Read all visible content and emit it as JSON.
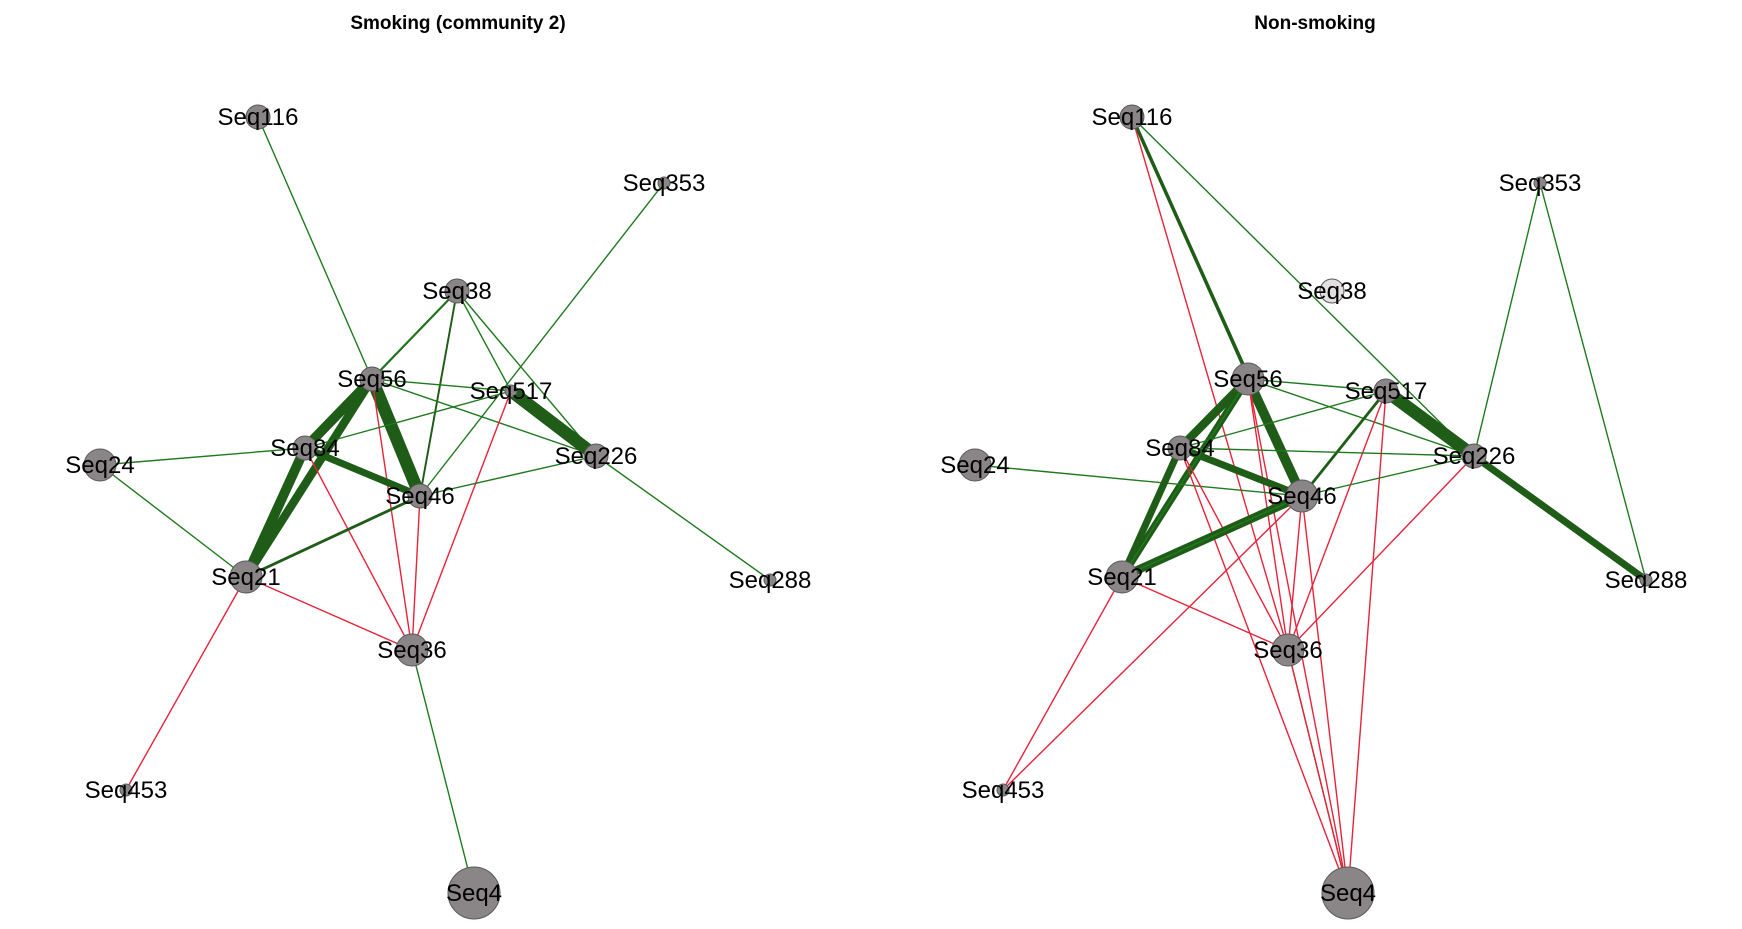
{
  "colors": {
    "positive_edge": "#1f7a1f",
    "positive_edge_strong": "#1e5c17",
    "negative_edge": "#e8233a",
    "node_fill": "#8a8587",
    "node_fill_light": "#e2e0e1",
    "node_stroke": "#5a5a5a"
  },
  "panels": [
    {
      "id": "smoking",
      "title": "Smoking (community 2)",
      "nodes": [
        {
          "id": "Seq116",
          "label": "Seq116",
          "size": "small"
        },
        {
          "id": "Seq353",
          "label": "Seq353",
          "size": "tiny"
        },
        {
          "id": "Seq38",
          "label": "Seq38",
          "size": "small"
        },
        {
          "id": "Seq56",
          "label": "Seq56",
          "size": "small"
        },
        {
          "id": "Seq517",
          "label": "Seq517",
          "size": "tiny"
        },
        {
          "id": "Seq24",
          "label": "Seq24",
          "size": "medium"
        },
        {
          "id": "Seq84",
          "label": "Seq84",
          "size": "small"
        },
        {
          "id": "Seq226",
          "label": "Seq226",
          "size": "small"
        },
        {
          "id": "Seq46",
          "label": "Seq46",
          "size": "small"
        },
        {
          "id": "Seq21",
          "label": "Seq21",
          "size": "medium"
        },
        {
          "id": "Seq288",
          "label": "Seq288",
          "size": "tiny"
        },
        {
          "id": "Seq36",
          "label": "Seq36",
          "size": "medium"
        },
        {
          "id": "Seq453",
          "label": "Seq453",
          "size": "tiny"
        },
        {
          "id": "Seq4",
          "label": "Seq4",
          "size": "large"
        }
      ],
      "edges": [
        {
          "from": "Seq116",
          "to": "Seq56",
          "sign": "positive",
          "weight": 1
        },
        {
          "from": "Seq353",
          "to": "Seq46",
          "sign": "positive",
          "weight": 1
        },
        {
          "from": "Seq38",
          "to": "Seq56",
          "sign": "positive",
          "weight": 1.5
        },
        {
          "from": "Seq38",
          "to": "Seq84",
          "sign": "positive",
          "weight": 1
        },
        {
          "from": "Seq38",
          "to": "Seq46",
          "sign": "positive",
          "weight": 1.4
        },
        {
          "from": "Seq38",
          "to": "Seq517",
          "sign": "positive",
          "weight": 1
        },
        {
          "from": "Seq38",
          "to": "Seq226",
          "sign": "positive",
          "weight": 1
        },
        {
          "from": "Seq56",
          "to": "Seq517",
          "sign": "positive",
          "weight": 1
        },
        {
          "from": "Seq56",
          "to": "Seq226",
          "sign": "positive",
          "weight": 1
        },
        {
          "from": "Seq56",
          "to": "Seq84",
          "sign": "positive",
          "weight": 7
        },
        {
          "from": "Seq56",
          "to": "Seq21",
          "sign": "positive",
          "weight": 6
        },
        {
          "from": "Seq56",
          "to": "Seq46",
          "sign": "positive",
          "weight": 9
        },
        {
          "from": "Seq56",
          "to": "Seq36",
          "sign": "negative",
          "weight": 1
        },
        {
          "from": "Seq517",
          "to": "Seq226",
          "sign": "positive",
          "weight": 9
        },
        {
          "from": "Seq517",
          "to": "Seq84",
          "sign": "positive",
          "weight": 1
        },
        {
          "from": "Seq517",
          "to": "Seq36",
          "sign": "negative",
          "weight": 1
        },
        {
          "from": "Seq24",
          "to": "Seq84",
          "sign": "positive",
          "weight": 1
        },
        {
          "from": "Seq24",
          "to": "Seq21",
          "sign": "positive",
          "weight": 1
        },
        {
          "from": "Seq84",
          "to": "Seq46",
          "sign": "positive",
          "weight": 5
        },
        {
          "from": "Seq84",
          "to": "Seq21",
          "sign": "positive",
          "weight": 7
        },
        {
          "from": "Seq84",
          "to": "Seq36",
          "sign": "negative",
          "weight": 1
        },
        {
          "from": "Seq226",
          "to": "Seq46",
          "sign": "positive",
          "weight": 1
        },
        {
          "from": "Seq226",
          "to": "Seq288",
          "sign": "positive",
          "weight": 1
        },
        {
          "from": "Seq46",
          "to": "Seq21",
          "sign": "positive",
          "weight": 2
        },
        {
          "from": "Seq46",
          "to": "Seq36",
          "sign": "negative",
          "weight": 1
        },
        {
          "from": "Seq21",
          "to": "Seq36",
          "sign": "negative",
          "weight": 1
        },
        {
          "from": "Seq21",
          "to": "Seq453",
          "sign": "negative",
          "weight": 1
        },
        {
          "from": "Seq36",
          "to": "Seq4",
          "sign": "positive",
          "weight": 1
        }
      ]
    },
    {
      "id": "non-smoking",
      "title": "Non-smoking",
      "nodes": [
        {
          "id": "Seq116",
          "label": "Seq116",
          "size": "small"
        },
        {
          "id": "Seq353",
          "label": "Seq353",
          "size": "tiny"
        },
        {
          "id": "Seq38",
          "label": "Seq38",
          "size": "small",
          "light": true
        },
        {
          "id": "Seq56",
          "label": "Seq56",
          "size": "medium"
        },
        {
          "id": "Seq517",
          "label": "Seq517",
          "size": "small"
        },
        {
          "id": "Seq24",
          "label": "Seq24",
          "size": "medium"
        },
        {
          "id": "Seq84",
          "label": "Seq84",
          "size": "small"
        },
        {
          "id": "Seq226",
          "label": "Seq226",
          "size": "small"
        },
        {
          "id": "Seq46",
          "label": "Seq46",
          "size": "medium"
        },
        {
          "id": "Seq21",
          "label": "Seq21",
          "size": "medium"
        },
        {
          "id": "Seq288",
          "label": "Seq288",
          "size": "tiny"
        },
        {
          "id": "Seq36",
          "label": "Seq36",
          "size": "medium"
        },
        {
          "id": "Seq453",
          "label": "Seq453",
          "size": "tiny"
        },
        {
          "id": "Seq4",
          "label": "Seq4",
          "size": "large"
        }
      ],
      "edges": [
        {
          "from": "Seq116",
          "to": "Seq56",
          "sign": "positive",
          "weight": 1
        },
        {
          "from": "Seq116",
          "to": "Seq46",
          "sign": "positive",
          "weight": 2.5
        },
        {
          "from": "Seq116",
          "to": "Seq226",
          "sign": "positive",
          "weight": 1
        },
        {
          "from": "Seq116",
          "to": "Seq36",
          "sign": "negative",
          "weight": 1
        },
        {
          "from": "Seq353",
          "to": "Seq226",
          "sign": "positive",
          "weight": 1
        },
        {
          "from": "Seq353",
          "to": "Seq288",
          "sign": "positive",
          "weight": 1
        },
        {
          "from": "Seq56",
          "to": "Seq84",
          "sign": "positive",
          "weight": 6
        },
        {
          "from": "Seq56",
          "to": "Seq21",
          "sign": "positive",
          "weight": 5
        },
        {
          "from": "Seq56",
          "to": "Seq46",
          "sign": "positive",
          "weight": 7
        },
        {
          "from": "Seq56",
          "to": "Seq517",
          "sign": "positive",
          "weight": 1
        },
        {
          "from": "Seq56",
          "to": "Seq226",
          "sign": "positive",
          "weight": 1
        },
        {
          "from": "Seq56",
          "to": "Seq36",
          "sign": "negative",
          "weight": 1
        },
        {
          "from": "Seq56",
          "to": "Seq4",
          "sign": "negative",
          "weight": 1
        },
        {
          "from": "Seq517",
          "to": "Seq226",
          "sign": "positive",
          "weight": 9
        },
        {
          "from": "Seq517",
          "to": "Seq84",
          "sign": "positive",
          "weight": 1
        },
        {
          "from": "Seq517",
          "to": "Seq46",
          "sign": "positive",
          "weight": 2
        },
        {
          "from": "Seq517",
          "to": "Seq36",
          "sign": "negative",
          "weight": 1
        },
        {
          "from": "Seq517",
          "to": "Seq4",
          "sign": "negative",
          "weight": 1
        },
        {
          "from": "Seq226",
          "to": "Seq288",
          "sign": "positive",
          "weight": 5
        },
        {
          "from": "Seq226",
          "to": "Seq46",
          "sign": "positive",
          "weight": 1
        },
        {
          "from": "Seq226",
          "to": "Seq84",
          "sign": "positive",
          "weight": 1
        },
        {
          "from": "Seq226",
          "to": "Seq36",
          "sign": "negative",
          "weight": 1
        },
        {
          "from": "Seq24",
          "to": "Seq46",
          "sign": "positive",
          "weight": 1
        },
        {
          "from": "Seq84",
          "to": "Seq46",
          "sign": "positive",
          "weight": 5
        },
        {
          "from": "Seq84",
          "to": "Seq21",
          "sign": "positive",
          "weight": 5
        },
        {
          "from": "Seq84",
          "to": "Seq36",
          "sign": "negative",
          "weight": 1
        },
        {
          "from": "Seq84",
          "to": "Seq4",
          "sign": "negative",
          "weight": 1
        },
        {
          "from": "Seq46",
          "to": "Seq21",
          "sign": "positive",
          "weight": 6
        },
        {
          "from": "Seq46",
          "to": "Seq36",
          "sign": "negative",
          "weight": 1
        },
        {
          "from": "Seq46",
          "to": "Seq453",
          "sign": "negative",
          "weight": 1
        },
        {
          "from": "Seq46",
          "to": "Seq4",
          "sign": "negative",
          "weight": 1
        },
        {
          "from": "Seq21",
          "to": "Seq36",
          "sign": "negative",
          "weight": 1
        },
        {
          "from": "Seq21",
          "to": "Seq453",
          "sign": "negative",
          "weight": 1
        },
        {
          "from": "Seq21",
          "to": "Seq46",
          "sign": "positive",
          "weight": 1
        },
        {
          "from": "Seq21",
          "to": "Seq56",
          "sign": "positive",
          "weight": 1
        },
        {
          "from": "Seq36",
          "to": "Seq4",
          "sign": "positive",
          "weight": 1
        },
        {
          "from": "Seq36",
          "to": "Seq4",
          "sign": "negative",
          "weight": 1
        }
      ]
    }
  ]
}
